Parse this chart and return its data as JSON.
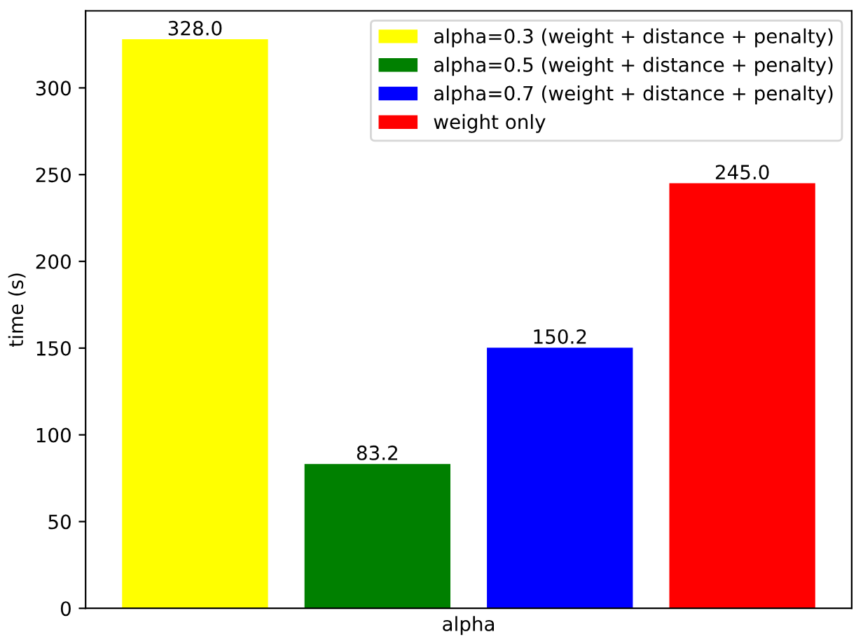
{
  "chart_data": {
    "type": "bar",
    "xlabel": "alpha",
    "ylabel": "time (s)",
    "categories": [
      null,
      null,
      null,
      null
    ],
    "series": [
      {
        "name": "alpha=0.3 (weight + distance + penalty)",
        "color": "#ffff00",
        "values": [
          328.0,
          null,
          null,
          null
        ],
        "value_labels": [
          "328.0",
          null,
          null,
          null
        ]
      },
      {
        "name": "alpha=0.5 (weight + distance + penalty)",
        "color": "#008000",
        "values": [
          null,
          83.2,
          null,
          null
        ],
        "value_labels": [
          null,
          "83.2",
          null,
          null
        ]
      },
      {
        "name": "alpha=0.7 (weight + distance + penalty)",
        "color": "#0000ff",
        "values": [
          null,
          null,
          150.2,
          null
        ],
        "value_labels": [
          null,
          null,
          "150.2",
          null
        ]
      },
      {
        "name": "weight only",
        "color": "#ff0000",
        "values": [
          null,
          null,
          null,
          245.0
        ],
        "value_labels": [
          null,
          null,
          null,
          "245.0"
        ]
      }
    ],
    "ylim": [
      0,
      344.4
    ],
    "yticks": [
      0,
      50,
      100,
      150,
      200,
      250,
      300
    ],
    "legend": "top right",
    "tick_labels": "y",
    "grid": false
  }
}
